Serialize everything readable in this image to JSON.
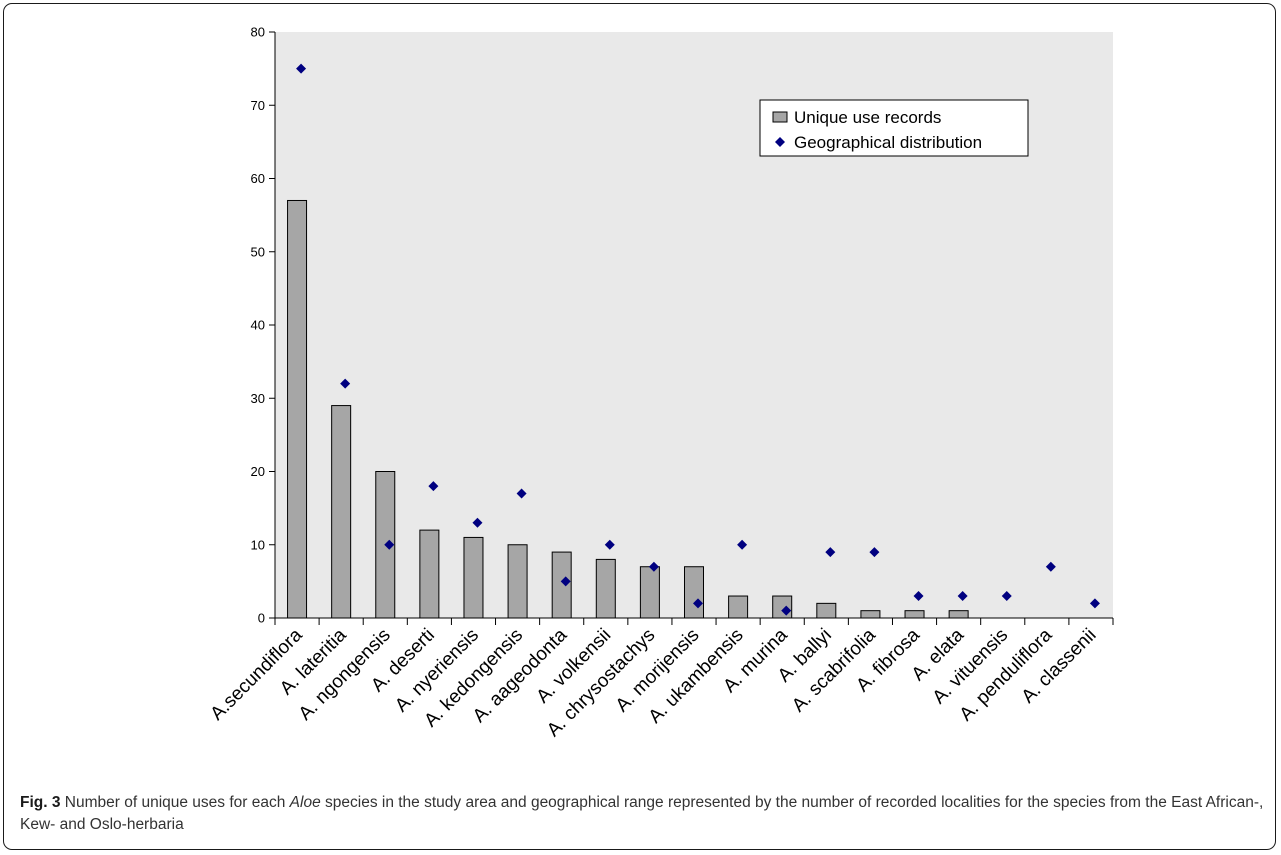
{
  "chart_data": {
    "type": "bar",
    "categories": [
      "A.secundiflora",
      "A. lateritia",
      "A. ngongensis",
      "A. deserti",
      "A. nyeriensis",
      "A. kedongensis",
      "A. aageodonta",
      "A. volkensii",
      "A. chrysostachys",
      "A. morijensis",
      "A. ukambensis",
      "A. murina",
      "A. ballyi",
      "A. scabrifolia",
      "A. fibrosa",
      "A. elata",
      "A. vituensis",
      "A. penduliflora",
      "A. classenii"
    ],
    "series": [
      {
        "name": "Unique use records",
        "kind": "bar",
        "color": "#a6a6a6",
        "values": [
          57,
          29,
          20,
          12,
          11,
          10,
          9,
          8,
          7,
          7,
          3,
          3,
          2,
          1,
          1,
          1,
          0,
          0,
          0
        ]
      },
      {
        "name": "Geographical distribution",
        "kind": "marker",
        "marker": "diamond",
        "color": "#000080",
        "values": [
          75,
          32,
          10,
          18,
          13,
          17,
          5,
          10,
          7,
          2,
          10,
          1,
          9,
          9,
          3,
          3,
          3,
          7,
          2
        ]
      }
    ],
    "yticks": [
      0,
      10,
      20,
      30,
      40,
      50,
      60,
      70,
      80
    ],
    "ylim": [
      0,
      80
    ],
    "plot_area_color": "#e9e9e9",
    "legend_position": "top-right",
    "grid": false
  },
  "caption": {
    "label": "Fig. 3",
    "text_before": " Number of unique uses for each ",
    "italic": "Aloe",
    "text_after": " species in the study area and geographical range represented by the number of recorded localities for the species from the East African-, Kew- and Oslo-herbaria"
  }
}
